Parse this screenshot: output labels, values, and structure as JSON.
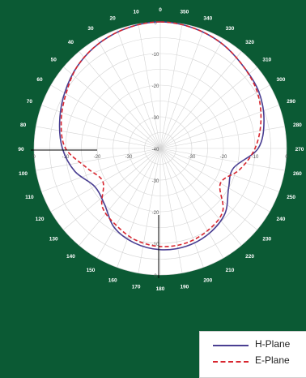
{
  "colors": {
    "background": "#0b5a34",
    "plot_face": "#ffffff",
    "grid": "#d4d4d4",
    "h_plane": "#4a3f92",
    "e_plane": "#d8262f"
  },
  "chart_data": {
    "type": "polar-line",
    "title": "",
    "radial_axis": {
      "min": -40,
      "max": 0,
      "ticks": [
        0,
        -10,
        -20,
        -30,
        -40
      ]
    },
    "radial_tick_labels": [
      "0",
      "-10",
      "-20",
      "-30",
      "-40"
    ],
    "angle_tick_labels": [
      "0",
      "10",
      "20",
      "30",
      "40",
      "50",
      "60",
      "70",
      "80",
      "90",
      "100",
      "110",
      "120",
      "130",
      "140",
      "150",
      "160",
      "170",
      "180",
      "190",
      "200",
      "210",
      "220",
      "230",
      "240",
      "250",
      "260",
      "270",
      "280",
      "290",
      "300",
      "310",
      "320",
      "330",
      "340",
      "350"
    ],
    "angle_direction": "counter-clockwise",
    "grid": true,
    "legend_position": "bottom-right",
    "series": [
      {
        "name": "H-Plane",
        "style": "solid",
        "angles": [
          0,
          15,
          30,
          45,
          60,
          75,
          90,
          105,
          120,
          135,
          150,
          165,
          180,
          195,
          210,
          225,
          240,
          255,
          270,
          285,
          300,
          315,
          330,
          345
        ],
        "values": [
          0,
          -0.5,
          -1.5,
          -3,
          -5,
          -7,
          -9,
          -12,
          -16,
          -15,
          -11,
          -9,
          -8,
          -8,
          -9,
          -11,
          -15,
          -16,
          -9,
          -6,
          -4,
          -3,
          -1.5,
          -0.5
        ]
      },
      {
        "name": "E-Plane",
        "style": "dashed",
        "angles": [
          0,
          15,
          30,
          45,
          60,
          75,
          90,
          105,
          120,
          135,
          150,
          165,
          180,
          195,
          210,
          225,
          240,
          255,
          270,
          285,
          300,
          315,
          330,
          345
        ],
        "values": [
          0,
          -0.5,
          -1.5,
          -3,
          -5.5,
          -7.5,
          -10,
          -16,
          -19,
          -14,
          -12,
          -10,
          -9,
          -9,
          -10,
          -12,
          -18,
          -14,
          -10,
          -7,
          -4.5,
          -3,
          -1.5,
          -0.5
        ]
      }
    ]
  }
}
